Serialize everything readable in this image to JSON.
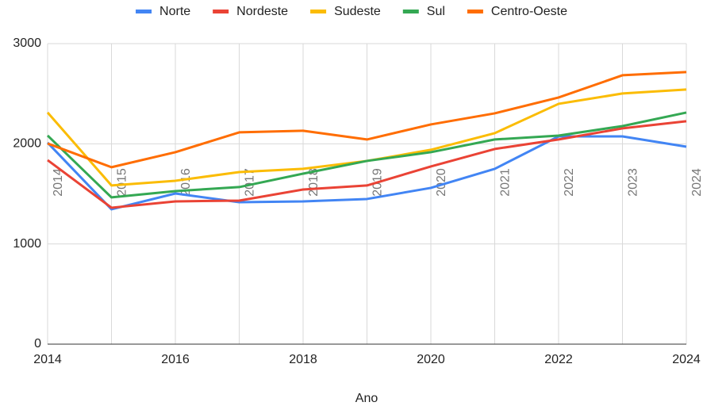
{
  "chart_data": {
    "type": "line",
    "x_label": "Ano",
    "x": [
      2014,
      2015,
      2016,
      2017,
      2018,
      2019,
      2020,
      2021,
      2022,
      2023,
      2024
    ],
    "annotations": [
      "2014",
      "2015",
      "2016",
      "2017",
      "2018",
      "2019",
      "2020",
      "2021",
      "2022",
      "2023",
      "2024"
    ],
    "series": [
      {
        "name": "Norte",
        "color": "#4285f4",
        "values": [
          2011,
          1346,
          1504,
          1417,
          1425,
          1449,
          1560,
          1750,
          2074,
          2074,
          1971
        ]
      },
      {
        "name": "Nordeste",
        "color": "#ea4335",
        "values": [
          1837,
          1362,
          1425,
          1433,
          1544,
          1584,
          1774,
          1948,
          2043,
          2154,
          2225
        ]
      },
      {
        "name": "Sudeste",
        "color": "#fbbc04",
        "values": [
          2312,
          1584,
          1631,
          1718,
          1750,
          1829,
          1940,
          2106,
          2399,
          2502,
          2542
        ]
      },
      {
        "name": "Sul",
        "color": "#34a853",
        "values": [
          2082,
          1465,
          1528,
          1568,
          1702,
          1829,
          1916,
          2043,
          2082,
          2177,
          2312
        ]
      },
      {
        "name": "Centro-Oeste",
        "color": "#ff6d01",
        "values": [
          2003,
          1766,
          1916,
          2114,
          2130,
          2043,
          2193,
          2304,
          2462,
          2684,
          2716
        ]
      }
    ],
    "xlim": [
      2014,
      2024
    ],
    "xticks": [
      2014,
      2016,
      2018,
      2020,
      2022,
      2024
    ],
    "ylim": [
      0,
      3000
    ],
    "yticks": [
      0,
      1000,
      2000,
      3000
    ],
    "grid": true,
    "legend": "top"
  }
}
